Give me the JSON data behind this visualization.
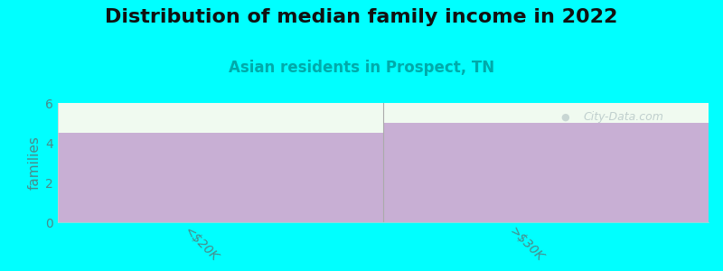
{
  "title": "Distribution of median family income in 2022",
  "subtitle": "Asian residents in Prospect, TN",
  "categories": [
    "<$20K",
    ">$30K"
  ],
  "values": [
    4.5,
    5.0
  ],
  "bar_color": "#c8afd4",
  "background_color": "#00ffff",
  "plot_bg_color": "#f0faf0",
  "ylabel": "families",
  "ylim": [
    0,
    6
  ],
  "yticks": [
    0,
    2,
    4,
    6
  ],
  "title_fontsize": 16,
  "subtitle_fontsize": 12,
  "subtitle_color": "#00aaaa",
  "ylabel_color": "#4a8a8a",
  "tick_color": "#4a8a8a",
  "watermark": "City-Data.com",
  "watermark_color": "#b8c8c8"
}
